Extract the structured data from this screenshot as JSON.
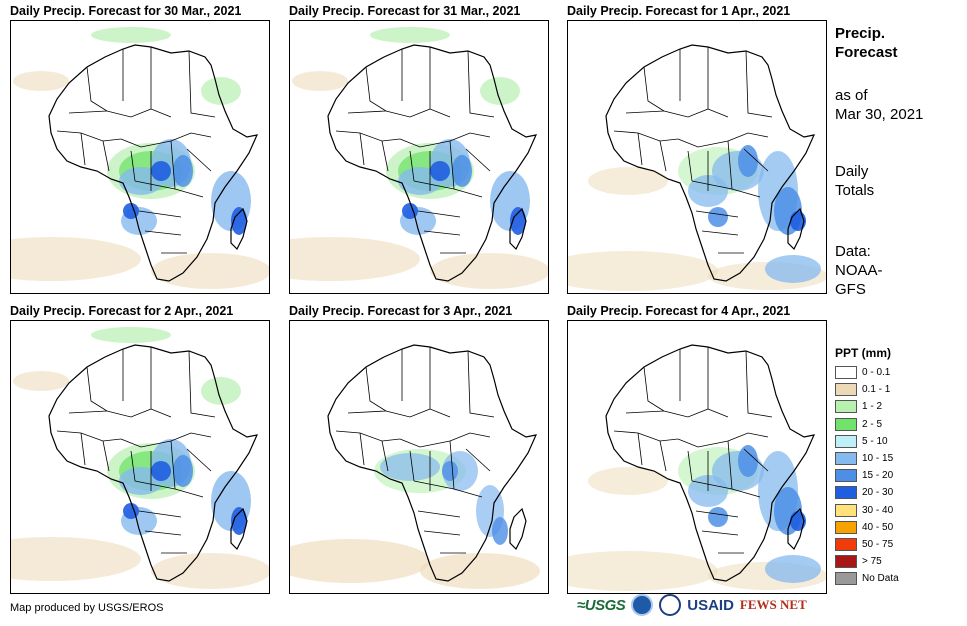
{
  "panels": [
    {
      "title": "Daily Precip. Forecast for 30 Mar., 2021",
      "rain": "mid"
    },
    {
      "title": "Daily Precip. Forecast for 31 Mar., 2021",
      "rain": "mid"
    },
    {
      "title": "Daily Precip. Forecast for 1 Apr., 2021",
      "rain": "east"
    },
    {
      "title": "Daily Precip. Forecast for 2 Apr., 2021",
      "rain": "mid"
    },
    {
      "title": "Daily Precip. Forecast for 3 Apr., 2021",
      "rain": "light"
    },
    {
      "title": "Daily Precip. Forecast for 4 Apr., 2021",
      "rain": "east"
    }
  ],
  "side": {
    "title_line1": "Precip.",
    "title_line2": "Forecast",
    "asof_line1": "as of",
    "asof_line2": "Mar 30, 2021",
    "totals_line1": "Daily",
    "totals_line2": "Totals",
    "data_line1": "Data:",
    "data_line2": "NOAA-",
    "data_line3": "GFS"
  },
  "legend": {
    "title": "PPT (mm)",
    "items": [
      {
        "label": "0 - 0.1",
        "color": "#ffffff"
      },
      {
        "label": "0.1 - 1",
        "color": "#ecd9b6"
      },
      {
        "label": "1 - 2",
        "color": "#b8f0b0"
      },
      {
        "label": "2 - 5",
        "color": "#6fe36a"
      },
      {
        "label": "5 - 10",
        "color": "#bff0f7"
      },
      {
        "label": "10 - 15",
        "color": "#86b9ee"
      },
      {
        "label": "15 - 20",
        "color": "#4d8fe6"
      },
      {
        "label": "20 - 30",
        "color": "#1f5ee0"
      },
      {
        "label": "30 - 40",
        "color": "#ffe27a"
      },
      {
        "label": "40 - 50",
        "color": "#f6a300"
      },
      {
        "label": "50 - 75",
        "color": "#f03c0b"
      },
      {
        "label": "> 75",
        "color": "#a81616"
      },
      {
        "label": "No Data",
        "color": "#999999"
      }
    ]
  },
  "credit": "Map produced by USGS/EROS",
  "logos": {
    "usgs": "≈USGS",
    "usaid": "USAID",
    "fews": "FEWS NET"
  }
}
